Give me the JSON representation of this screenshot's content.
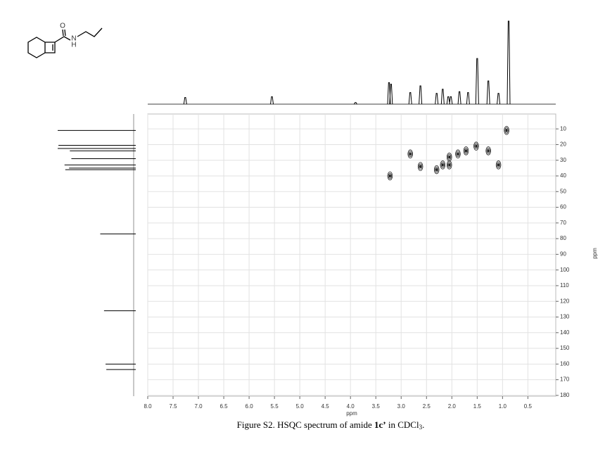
{
  "structure": {
    "atoms": [
      "O",
      "N",
      "H"
    ]
  },
  "chart_data": {
    "type": "hsqc",
    "x_label": "ppm",
    "y_label": "ppm",
    "xlim": [
      8.0,
      -0.05
    ],
    "xticks": [
      {
        "value": 8,
        "label": "8.0"
      },
      7.5,
      {
        "value": 7,
        "label": "7.0"
      },
      6.5,
      {
        "value": 6,
        "label": "6.0"
      },
      5.5,
      {
        "value": 5,
        "label": "5.0"
      },
      4.5,
      {
        "value": 4,
        "label": "4.0"
      },
      3.5,
      {
        "value": 3,
        "label": "3.0"
      },
      2.5,
      {
        "value": 2,
        "label": "2.0"
      },
      1.5,
      {
        "value": 1,
        "label": "1.0"
      },
      0.5
    ],
    "ylim": [
      0.5,
      180.5
    ],
    "yticks": [
      10,
      20,
      30,
      40,
      50,
      60,
      70,
      80,
      90,
      100,
      110,
      120,
      130,
      140,
      150,
      160,
      170,
      180
    ],
    "grid": true,
    "cross_peaks": {
      "x": [
        3.22,
        2.82,
        2.62,
        2.18,
        2.05,
        2.05,
        2.3,
        1.88,
        1.72,
        1.52,
        1.28,
        1.08,
        0.92
      ],
      "y": [
        40,
        26,
        34,
        33,
        33,
        28,
        36,
        26,
        24,
        21,
        24,
        33,
        11
      ]
    },
    "proton_spectrum": {
      "x": [
        7.26,
        5.55,
        3.9,
        3.24,
        3.2,
        2.82,
        2.62,
        2.3,
        2.18,
        2.07,
        2.02,
        1.85,
        1.68,
        1.5,
        1.28,
        1.08,
        0.88
      ],
      "values": [
        0.08,
        0.09,
        0.02,
        0.26,
        0.24,
        0.14,
        0.22,
        0.13,
        0.18,
        0.09,
        0.09,
        0.15,
        0.14,
        0.55,
        0.28,
        0.13,
        1.0
      ]
    },
    "carbon_spectrum": {
      "y": [
        11,
        20.5,
        22.5,
        24,
        29,
        33,
        35,
        36,
        77,
        126,
        160,
        163.5
      ],
      "values": [
        1.0,
        0.99,
        1.0,
        0.84,
        0.82,
        0.91,
        0.85,
        0.9,
        0.44,
        0.39,
        0.37,
        0.36
      ]
    }
  },
  "caption": {
    "parts": [
      "Figure S2. HSQC spectrum of amide ",
      "1c’",
      " in CDCl",
      "3",
      "."
    ]
  }
}
